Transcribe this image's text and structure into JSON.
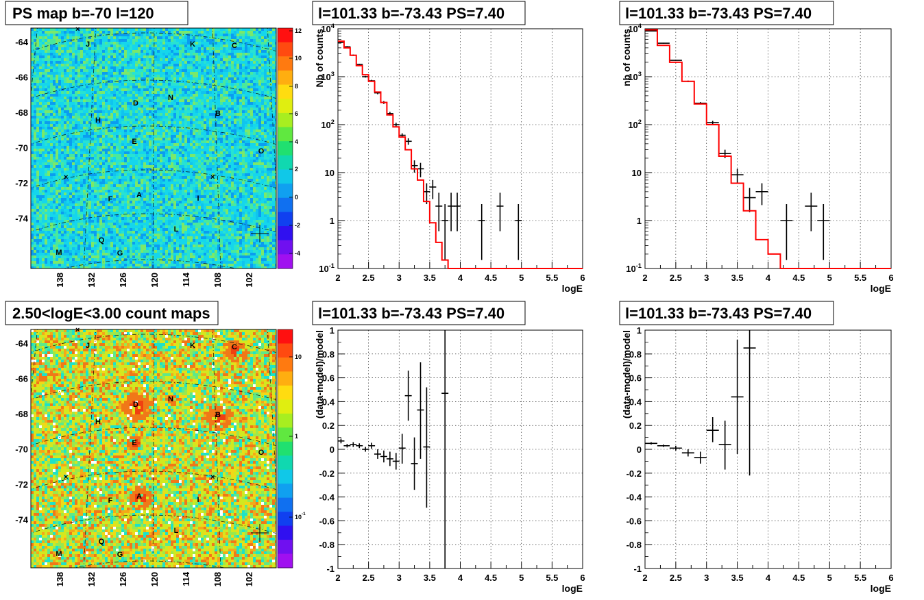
{
  "panels": {
    "ps_map": {
      "title": "PS map b=-70 l=120"
    },
    "count_map": {
      "title": "2.50<logE<3.00 count maps"
    }
  },
  "sky_maps": {
    "y_ticks": [
      "-64",
      "-66",
      "-68",
      "-70",
      "-72",
      "-74"
    ],
    "x_ticks": [
      "138",
      "132",
      "126",
      "120",
      "114",
      "108",
      "102"
    ],
    "sources": [
      "J",
      "K",
      "C",
      "D",
      "N",
      "H",
      "B",
      "E",
      "O",
      "F",
      "A",
      "I",
      "L",
      "Q",
      "M",
      "G"
    ]
  },
  "colorbars": {
    "ps_map": {
      "ticks": [
        "12",
        "10",
        "8",
        "6",
        "4",
        "2",
        "0",
        "-2",
        "-4"
      ]
    },
    "count_map": {
      "ticks": [
        "10",
        "1",
        "10-1"
      ]
    }
  },
  "chart_data": [
    {
      "type": "line",
      "title": "l=101.33 b=-73.43 PS=7.40",
      "xlabel": "logE",
      "ylabel": "Nb of counts",
      "xlim": [
        2,
        6
      ],
      "ylim": [
        0.1,
        10000
      ],
      "log_y": true,
      "grid": true,
      "x_ticks": [
        "2",
        "2.5",
        "3",
        "3.5",
        "4",
        "4.5",
        "5",
        "5.5",
        "6"
      ],
      "y_ticks": [
        "10-1",
        "1",
        "10",
        "102",
        "103",
        "104"
      ],
      "series": [
        {
          "kind": "points",
          "x": [
            2.05,
            2.15,
            2.25,
            2.35,
            2.45,
            2.55,
            2.65,
            2.75,
            2.85,
            2.95,
            3.05,
            3.15,
            3.25,
            3.35,
            3.45,
            3.55,
            3.65,
            3.75,
            3.85,
            3.95,
            4.35,
            4.65,
            4.95
          ],
          "y": [
            5200,
            4200,
            2800,
            1800,
            1000,
            820,
            460,
            290,
            170,
            100,
            60,
            45,
            14,
            12,
            4,
            5,
            2,
            1,
            2,
            2,
            1,
            2,
            1
          ],
          "lo": [
            5050,
            4050,
            2700,
            1750,
            960,
            780,
            430,
            270,
            155,
            90,
            54,
            38,
            10,
            8,
            2.2,
            2.8,
            0.6,
            0.15,
            0.6,
            0.6,
            0.15,
            0.6,
            0.15
          ],
          "hi": [
            5350,
            4350,
            2900,
            1850,
            1040,
            860,
            490,
            310,
            185,
            110,
            66,
            52,
            18,
            16,
            6,
            7,
            3.8,
            2.2,
            3.8,
            3.8,
            2.2,
            3.8,
            2.2
          ]
        },
        {
          "kind": "step",
          "edges": [
            2.0,
            2.1,
            2.2,
            2.3,
            2.4,
            2.5,
            2.6,
            2.7,
            2.8,
            2.9,
            3.0,
            3.1,
            3.2,
            3.3,
            3.4,
            3.5,
            3.6,
            3.7,
            3.8,
            3.9,
            4.0,
            6.0
          ],
          "values": [
            5500,
            4000,
            2800,
            1700,
            1100,
            800,
            480,
            290,
            160,
            90,
            55,
            30,
            12,
            7,
            2.5,
            0.9,
            0.35,
            0.15,
            0.1,
            0.1,
            0.1
          ],
          "color": "#ff0000"
        }
      ]
    },
    {
      "type": "line",
      "title": "l=101.33 b=-73.43 PS=7.40",
      "xlabel": "logE",
      "ylabel": "nb of counts",
      "xlim": [
        2,
        6
      ],
      "ylim": [
        0.1,
        10000
      ],
      "log_y": true,
      "grid": true,
      "x_ticks": [
        "2",
        "2.5",
        "3",
        "3.5",
        "4",
        "4.5",
        "5",
        "5.5",
        "6"
      ],
      "y_ticks": [
        "10-1",
        "1",
        "10",
        "102",
        "103",
        "104"
      ],
      "series": [
        {
          "kind": "points",
          "x": [
            2.1,
            2.3,
            2.5,
            2.7,
            2.9,
            3.1,
            3.3,
            3.5,
            3.7,
            3.9,
            4.3,
            4.7,
            4.9
          ],
          "y": [
            9000,
            5000,
            2200,
            800,
            280,
            110,
            25,
            9,
            3,
            4,
            1,
            2,
            1
          ],
          "lo": [
            8800,
            4900,
            2150,
            770,
            265,
            100,
            20,
            6,
            1.5,
            2.1,
            0.15,
            0.6,
            0.15
          ],
          "hi": [
            9200,
            5100,
            2250,
            830,
            295,
            120,
            30,
            12,
            4.8,
            6,
            2.2,
            3.8,
            2.2
          ]
        },
        {
          "kind": "step",
          "edges": [
            2.0,
            2.2,
            2.4,
            2.6,
            2.8,
            3.0,
            3.2,
            3.4,
            3.6,
            3.8,
            4.0,
            4.2,
            6.0
          ],
          "values": [
            9500,
            4500,
            2000,
            800,
            270,
            100,
            22,
            6,
            1.6,
            0.4,
            0.2,
            0.1
          ],
          "color": "#ff0000"
        }
      ]
    },
    {
      "type": "scatter",
      "title": "l=101.33 b=-73.43 PS=7.40",
      "xlabel": "logE",
      "ylabel": "(data-model)/model",
      "xlim": [
        2,
        6
      ],
      "ylim": [
        -1,
        1
      ],
      "grid": true,
      "x_ticks": [
        "2",
        "2.5",
        "3",
        "3.5",
        "4",
        "4.5",
        "5",
        "5.5",
        "6"
      ],
      "y_ticks": [
        "-1",
        "-0.8",
        "-0.6",
        "-0.4",
        "-0.2",
        "0",
        "0.2",
        "0.4",
        "0.6",
        "0.8",
        "1"
      ],
      "series": [
        {
          "kind": "points",
          "x": [
            2.05,
            2.15,
            2.25,
            2.35,
            2.45,
            2.55,
            2.65,
            2.75,
            2.85,
            2.95,
            3.05,
            3.15,
            3.25,
            3.35,
            3.45,
            3.75
          ],
          "y": [
            0.07,
            0.03,
            0.04,
            0.03,
            0.0,
            0.03,
            -0.04,
            -0.06,
            -0.08,
            -0.1,
            0.01,
            0.45,
            -0.12,
            0.33,
            0.02,
            0.47
          ],
          "lo": [
            0.05,
            0.015,
            0.02,
            0.01,
            -0.02,
            0.005,
            -0.08,
            -0.11,
            -0.14,
            -0.17,
            -0.12,
            0.24,
            -0.34,
            -0.08,
            -0.49,
            -1.0
          ],
          "hi": [
            0.09,
            0.045,
            0.06,
            0.05,
            0.02,
            0.055,
            0.0,
            -0.01,
            -0.02,
            -0.03,
            0.13,
            0.66,
            0.1,
            0.73,
            0.52,
            1.0
          ]
        }
      ]
    },
    {
      "type": "scatter",
      "title": "l=101.33 b=-73.43 PS=7.40",
      "xlabel": "logE",
      "ylabel": "(data-model)/model",
      "xlim": [
        2,
        6
      ],
      "ylim": [
        -1,
        1
      ],
      "grid": true,
      "x_ticks": [
        "2",
        "2.5",
        "3",
        "3.5",
        "4",
        "4.5",
        "5",
        "5.5",
        "6"
      ],
      "y_ticks": [
        "-1",
        "-0.8",
        "-0.6",
        "-0.4",
        "-0.2",
        "0",
        "0.2",
        "0.4",
        "0.6",
        "0.8",
        "1"
      ],
      "series": [
        {
          "kind": "points",
          "x": [
            2.1,
            2.3,
            2.5,
            2.7,
            2.9,
            3.1,
            3.3,
            3.5,
            3.7
          ],
          "y": [
            0.05,
            0.03,
            0.01,
            -0.03,
            -0.07,
            0.16,
            0.04,
            0.44,
            0.85
          ],
          "lo": [
            0.04,
            0.02,
            -0.01,
            -0.06,
            -0.12,
            0.06,
            -0.17,
            -0.04,
            -0.22
          ],
          "hi": [
            0.06,
            0.04,
            0.03,
            0.0,
            -0.02,
            0.27,
            0.24,
            0.92,
            1.0
          ]
        }
      ]
    }
  ]
}
